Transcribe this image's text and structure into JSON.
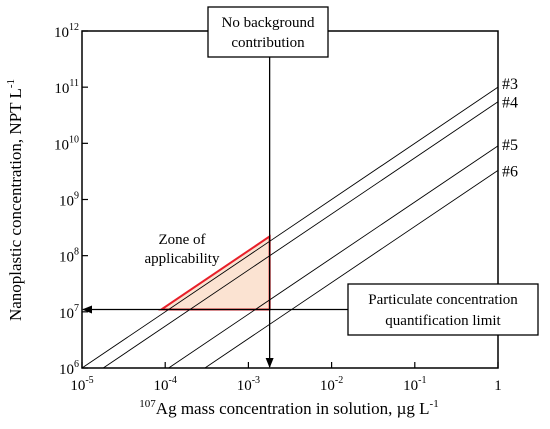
{
  "chart_data": {
    "type": "line",
    "title": "",
    "xlabel": {
      "sup": "107",
      "main": "Ag mass concentration in solution, µg L",
      "unit_exp": "-1"
    },
    "ylabel": {
      "main": "Nanoplastic concentration, NPT L",
      "unit_exp": "-1"
    },
    "x_scale": "log",
    "y_scale": "log",
    "xlim": [
      1e-05,
      1
    ],
    "ylim": [
      1000000,
      1000000000000
    ],
    "grid": false,
    "x_ticks": [
      {
        "value": 1e-05,
        "base": "10",
        "exp": "-5"
      },
      {
        "value": 0.0001,
        "base": "10",
        "exp": "-4"
      },
      {
        "value": 0.001,
        "base": "10",
        "exp": "-3"
      },
      {
        "value": 0.01,
        "base": "10",
        "exp": "-2"
      },
      {
        "value": 0.1,
        "base": "10",
        "exp": "-1"
      },
      {
        "value": 1,
        "base": "1",
        "exp": ""
      }
    ],
    "y_ticks": [
      {
        "value": 1000000,
        "base": "10",
        "exp": "6"
      },
      {
        "value": 10000000,
        "base": "10",
        "exp": "7"
      },
      {
        "value": 100000000,
        "base": "10",
        "exp": "8"
      },
      {
        "value": 1000000000,
        "base": "10",
        "exp": "9"
      },
      {
        "value": 10000000000,
        "base": "10",
        "exp": "10"
      },
      {
        "value": 100000000000,
        "base": "10",
        "exp": "11"
      },
      {
        "value": 1000000000000,
        "base": "10",
        "exp": "12"
      }
    ],
    "series": [
      {
        "name": "#3",
        "x": [
          1e-05,
          1
        ],
        "y": [
          1000000,
          100000000000
        ]
      },
      {
        "name": "#4",
        "x": [
          1.8e-05,
          1
        ],
        "y": [
          1000000,
          55000000000
        ]
      },
      {
        "name": "#5",
        "x": [
          0.00011,
          1
        ],
        "y": [
          1000000,
          9000000000
        ]
      },
      {
        "name": "#6",
        "x": [
          0.0003,
          1
        ],
        "y": [
          1000000,
          3300000000
        ]
      }
    ],
    "zone": {
      "label_line1": "Zone of",
      "label_line2": "applicability",
      "vertices": [
        [
          8.98e-05,
          11000000
        ],
        [
          0.0018,
          11000000
        ],
        [
          0.0018,
          220000000
        ]
      ],
      "fill": "#fbe3d2",
      "stroke": "#e8202a"
    },
    "vertical_limit": {
      "x": 0.0018,
      "label_line1": "No background",
      "label_line2": "contribution"
    },
    "horizontal_limit": {
      "y": 11000000,
      "label_line1": "Particulate concentration",
      "label_line2": "quantification limit"
    }
  }
}
